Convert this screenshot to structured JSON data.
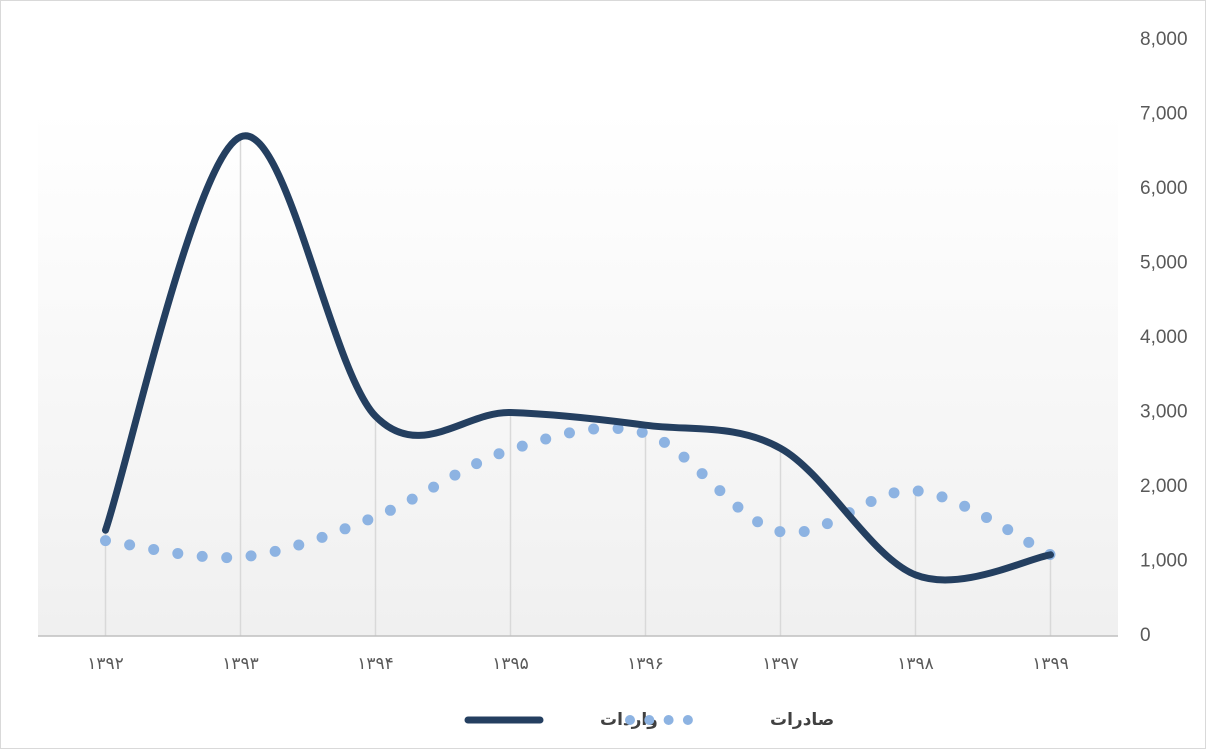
{
  "chart_data": {
    "type": "line",
    "categories": [
      "۱۳۹۲",
      "۱۳۹۳",
      "۱۳۹۴",
      "۱۳۹۵",
      "۱۳۹۶",
      "۱۳۹۷",
      "۱۳۹۸",
      "۱۳۹۹"
    ],
    "series": [
      {
        "name": "واردات",
        "color": "#243f60",
        "values": [
          1420,
          6700,
          2950,
          3000,
          2830,
          2520,
          820,
          1090
        ]
      },
      {
        "name": "صادرات",
        "color": "#8db3e2",
        "values": [
          1280,
          1060,
          1600,
          2500,
          2720,
          1400,
          1950,
          1090
        ]
      }
    ],
    "ylim": [
      0,
      8000
    ],
    "yticks": [
      0,
      {
        "value": 1000,
        "label": "1,000"
      },
      {
        "value": 2000,
        "label": "2,000"
      },
      {
        "value": 3000,
        "label": "3,000"
      },
      {
        "value": 4000,
        "label": "4,000"
      },
      {
        "value": 5000,
        "label": "5,000"
      },
      {
        "value": 6000,
        "label": "6,000"
      },
      {
        "value": 7000,
        "label": "7,000"
      },
      {
        "value": 8000,
        "label": "8,000"
      }
    ],
    "legend": "bottom"
  }
}
